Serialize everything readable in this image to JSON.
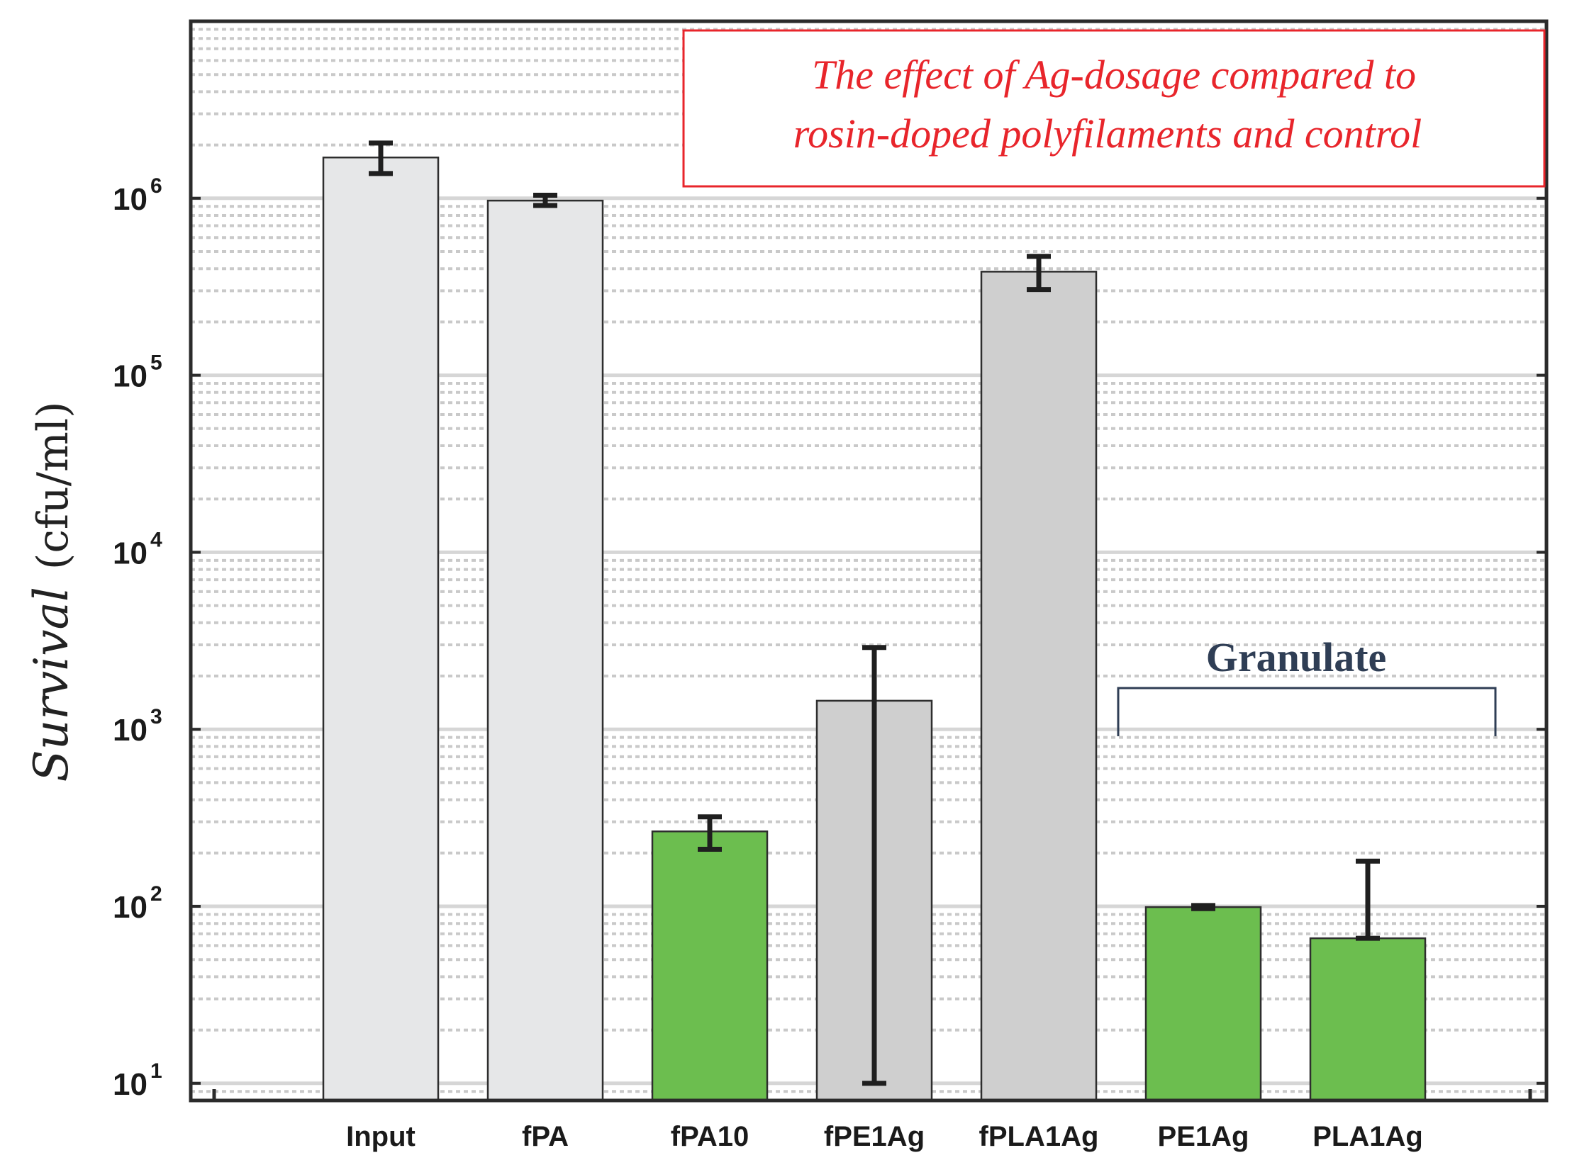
{
  "chart_data": {
    "type": "bar",
    "title": [
      "The effect of Ag-dosage compared to",
      "rosin-doped polyfilaments and control"
    ],
    "xlabel": "",
    "ylabel": {
      "italic": "Survival",
      "unit": "(cfu/ml)"
    },
    "yscale": "log",
    "ylim": [
      8,
      10000000
    ],
    "yticks": [
      {
        "base": "10",
        "exp": "1",
        "value": 10
      },
      {
        "base": "10",
        "exp": "2",
        "value": 100
      },
      {
        "base": "10",
        "exp": "3",
        "value": 1000
      },
      {
        "base": "10",
        "exp": "4",
        "value": 10000
      },
      {
        "base": "10",
        "exp": "5",
        "value": 100000
      },
      {
        "base": "10",
        "exp": "6",
        "value": 1000000
      }
    ],
    "grid": true,
    "categories": [
      "Input",
      "fPA",
      "fPA10",
      "fPE1Ag",
      "fPLA1Ag",
      "PE1Ag",
      "PLA1Ag"
    ],
    "values": [
      1700000,
      970000,
      265,
      1450,
      385000,
      99,
      66
    ],
    "error_low": [
      1380000,
      910000,
      210,
      10,
      305000,
      97,
      66
    ],
    "error_high": [
      2050000,
      1040000,
      320,
      2900,
      470000,
      101,
      180
    ],
    "colors": [
      "#e6e7e8",
      "#e6e7e8",
      "#6cbe4f",
      "#cfcfcf",
      "#cfcfcf",
      "#6cbe4f",
      "#6cbe4f"
    ],
    "group_bracket": {
      "label": "Granulate",
      "categories": [
        "PE1Ag",
        "PLA1Ag"
      ]
    },
    "legend": "top-right title box"
  }
}
